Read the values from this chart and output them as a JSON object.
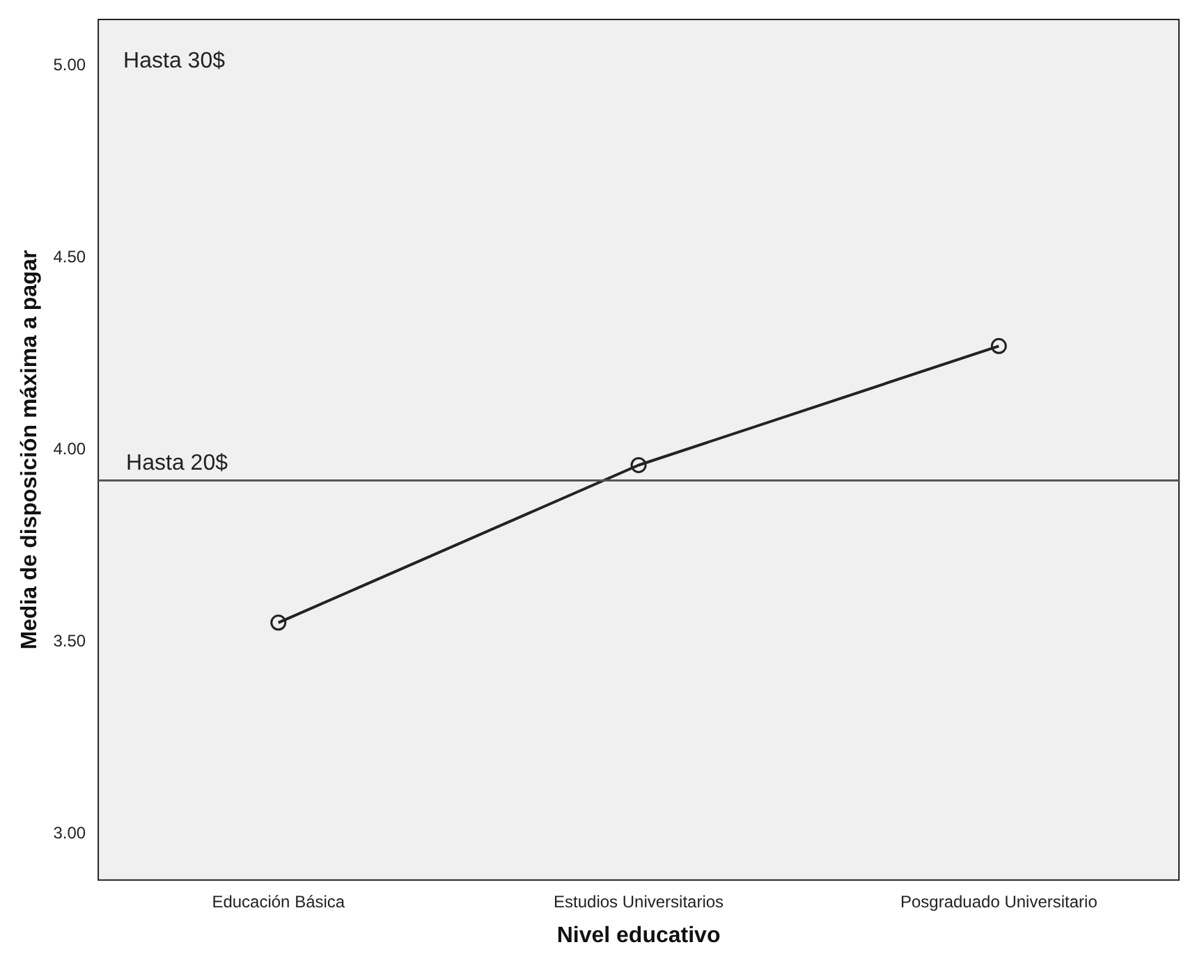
{
  "chart_data": {
    "type": "line",
    "xlabel": "Nivel educativo",
    "ylabel": "Media de disposición máxima a pagar",
    "categories": [
      "Educación Básica",
      "Estudios Universitarios",
      "Posgraduado Universitario"
    ],
    "series": [
      {
        "color": "#222222",
        "values": [
          3.55,
          3.96,
          4.27
        ]
      }
    ],
    "ylim": [
      2.88,
      5.12
    ],
    "yticks": [
      {
        "value": 3,
        "label": "3.00"
      },
      {
        "value": 3.5,
        "label": "3.50"
      },
      {
        "value": 4,
        "label": "4.00"
      },
      {
        "value": 4.5,
        "label": "4.50"
      },
      {
        "value": 5,
        "label": "5.00"
      }
    ],
    "ref_lines": [
      {
        "axis": "y",
        "value": 3.92,
        "label": "Hasta 20$",
        "color": "#555555"
      }
    ],
    "annotations": [
      "Hasta 30$"
    ],
    "grid": false,
    "legend": false,
    "marker": "circle",
    "line_style": "solid"
  }
}
